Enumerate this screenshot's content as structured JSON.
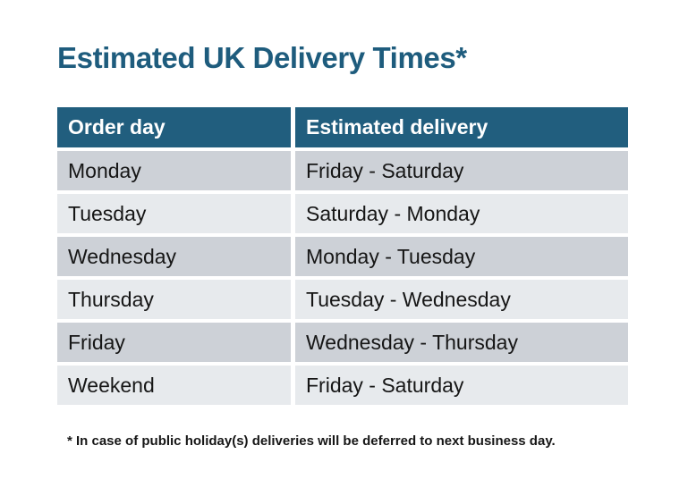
{
  "title": "Estimated UK Delivery Times*",
  "footnote": "* In case of public holiday(s) deliveries will be deferred to next business day.",
  "colors": {
    "header_bg": "#215E7E",
    "title_text": "#1E5C7D",
    "row_odd_bg": "#CDD1D7",
    "row_even_bg": "#E7EAED",
    "header_text": "#FFFFFF",
    "body_text": "#161616"
  },
  "chart_data": {
    "type": "table",
    "title": "Estimated UK Delivery Times*",
    "columns": [
      "Order day",
      "Estimated delivery"
    ],
    "rows": [
      [
        "Monday",
        "Friday - Saturday"
      ],
      [
        "Tuesday",
        "Saturday - Monday"
      ],
      [
        "Wednesday",
        "Monday - Tuesday"
      ],
      [
        "Thursday",
        "Tuesday - Wednesday"
      ],
      [
        "Friday",
        "Wednesday - Thursday"
      ],
      [
        "Weekend",
        "Friday - Saturday"
      ]
    ],
    "footnote": "* In case of public holiday(s) deliveries will be deferred to next business day.",
    "layout": {
      "header_row": true,
      "alternating_row_shading": true,
      "column_count": 2,
      "row_count": 6
    }
  }
}
